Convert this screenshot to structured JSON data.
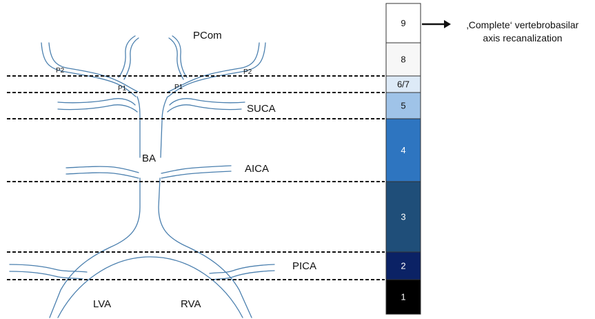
{
  "vessel_labels": {
    "pcom": "PCom",
    "p2_left": "P2",
    "p2_right": "P2",
    "p1_left": "P1",
    "p1_right": "P1",
    "suca": "SUCA",
    "ba": "BA",
    "aica": "AICA",
    "pica": "PICA",
    "lva": "LVA",
    "rva": "RVA"
  },
  "scale": [
    {
      "label": "9",
      "fill": "#ffffff",
      "text_color": "#111111"
    },
    {
      "label": "8",
      "fill": "#f7f7f7",
      "text_color": "#111111"
    },
    {
      "label": "6/7",
      "fill": "#ddeaf7",
      "text_color": "#111111"
    },
    {
      "label": "5",
      "fill": "#9fc3e8",
      "text_color": "#111111"
    },
    {
      "label": "4",
      "fill": "#2e75c0",
      "text_color": "#ffffff"
    },
    {
      "label": "3",
      "fill": "#1f4e79",
      "text_color": "#ffffff"
    },
    {
      "label": "2",
      "fill": "#0b2265",
      "text_color": "#ffffff"
    },
    {
      "label": "1",
      "fill": "#000000",
      "text_color": "#ffffff"
    }
  ],
  "annotation": {
    "line1": "‚Complete‘ vertebrobasilar",
    "line2": "axis recanalization"
  },
  "colors": {
    "vessel": "#4a7fae",
    "dashed_line": "#111111"
  }
}
